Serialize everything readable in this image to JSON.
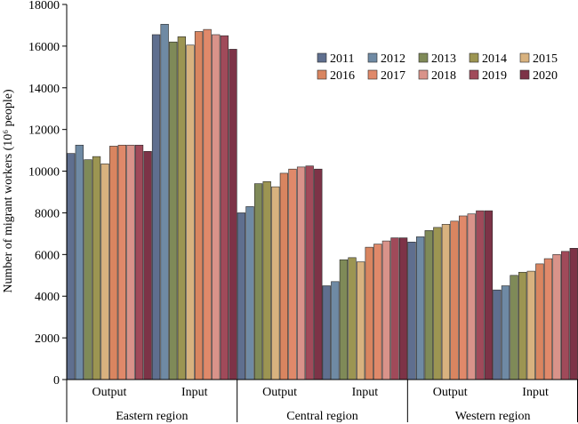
{
  "chart_data": {
    "type": "bar",
    "ylabel": "Number of migrant workers (10⁶ people)",
    "ylim": [
      0,
      18000
    ],
    "yticks": [
      0,
      2000,
      4000,
      6000,
      8000,
      10000,
      12000,
      14000,
      16000,
      18000
    ],
    "groups": [
      {
        "label": "Eastern region",
        "categories": [
          "Output",
          "Input"
        ]
      },
      {
        "label": "Central region",
        "categories": [
          "Output",
          "Input"
        ]
      },
      {
        "label": "Western region",
        "categories": [
          "Output",
          "Input"
        ]
      }
    ],
    "legend_position": "top-right",
    "series": [
      {
        "name": "2011",
        "color": "#5f6f8f",
        "values": [
          10850,
          16550,
          8000,
          4500,
          6600,
          4300
        ]
      },
      {
        "name": "2012",
        "color": "#6f8aa4",
        "values": [
          11250,
          17050,
          8300,
          4700,
          6850,
          4500
        ]
      },
      {
        "name": "2013",
        "color": "#7f8a58",
        "values": [
          10550,
          16200,
          9400,
          5750,
          7150,
          5000
        ]
      },
      {
        "name": "2014",
        "color": "#9c9552",
        "values": [
          10700,
          16450,
          9500,
          5850,
          7300,
          5150
        ]
      },
      {
        "name": "2015",
        "color": "#d8b27f",
        "values": [
          10350,
          16050,
          9250,
          5650,
          7450,
          5200
        ]
      },
      {
        "name": "2016",
        "color": "#d98560",
        "values": [
          11200,
          16700,
          9900,
          6350,
          7600,
          5550
        ]
      },
      {
        "name": "2017",
        "color": "#e0896a",
        "values": [
          11250,
          16800,
          10100,
          6500,
          7850,
          5800
        ]
      },
      {
        "name": "2018",
        "color": "#d9938a",
        "values": [
          11250,
          16550,
          10200,
          6650,
          7950,
          6000
        ]
      },
      {
        "name": "2019",
        "color": "#a04a5a",
        "values": [
          11250,
          16500,
          10250,
          6800,
          8100,
          6150
        ]
      },
      {
        "name": "2020",
        "color": "#7d3347",
        "values": [
          10950,
          15850,
          10100,
          6800,
          8100,
          6300
        ]
      }
    ]
  }
}
